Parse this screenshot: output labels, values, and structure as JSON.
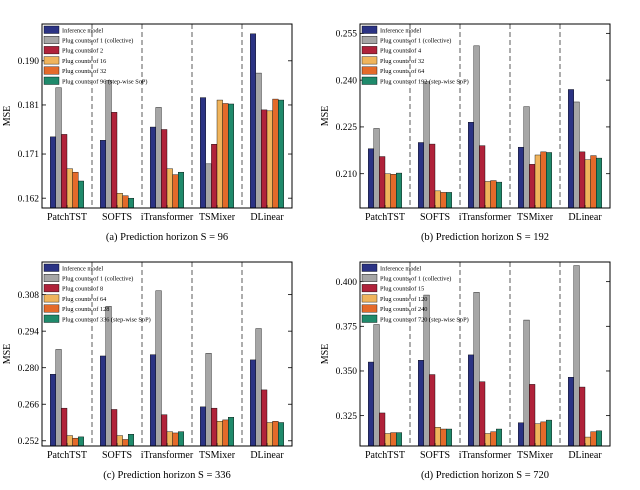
{
  "chart_data": [
    {
      "type": "bar",
      "caption": "(a) Prediction horizon S = 96",
      "ylabel": "MSE",
      "ylim": [
        0.16,
        0.1975
      ],
      "yticks": [
        "0.162",
        "0.171",
        "0.181",
        "0.190"
      ],
      "categories": [
        "PatchTST",
        "SOFTS",
        "iTransformer",
        "TSMixer",
        "DLinear"
      ],
      "series": [
        {
          "name": "Inference model",
          "values": [
            0.1745,
            0.1738,
            0.1765,
            0.1825,
            0.1955
          ]
        },
        {
          "name": "Plug counts of 1 (collective)",
          "values": [
            0.1845,
            0.186,
            0.1805,
            0.169,
            0.1875
          ]
        },
        {
          "name": "Plug counts of 2",
          "values": [
            0.175,
            0.1795,
            0.176,
            0.173,
            0.18
          ]
        },
        {
          "name": "Plug counts of 16",
          "values": [
            0.168,
            0.163,
            0.168,
            0.182,
            0.1798
          ]
        },
        {
          "name": "Plug counts of 32",
          "values": [
            0.1673,
            0.1625,
            0.1668,
            0.1813,
            0.1822
          ]
        },
        {
          "name": "Plug counts of 96 (step-wise SoP)",
          "values": [
            0.1655,
            0.162,
            0.1673,
            0.1812,
            0.182
          ]
        }
      ]
    },
    {
      "type": "bar",
      "caption": "(b) Prediction horizon S = 192",
      "ylabel": "MSE",
      "ylim": [
        0.199,
        0.258
      ],
      "yticks": [
        "0.210",
        "0.225",
        "0.240",
        "0.255"
      ],
      "categories": [
        "PatchTST",
        "SOFTS",
        "iTransformer",
        "TSMixer",
        "DLinear"
      ],
      "series": [
        {
          "name": "Inference model",
          "values": [
            0.218,
            0.22,
            0.2265,
            0.2185,
            0.237
          ]
        },
        {
          "name": "Plug counts of 1 (collective)",
          "values": [
            0.2245,
            0.2395,
            0.251,
            0.2315,
            0.233
          ]
        },
        {
          "name": "Plug counts of 4",
          "values": [
            0.2155,
            0.2195,
            0.219,
            0.213,
            0.217
          ]
        },
        {
          "name": "Plug counts of 32",
          "values": [
            0.21,
            0.2045,
            0.2075,
            0.216,
            0.2145
          ]
        },
        {
          "name": "Plug counts of 64",
          "values": [
            0.2098,
            0.204,
            0.2078,
            0.217,
            0.2158
          ]
        },
        {
          "name": "Plug counts of 192 (step-wise SoP)",
          "values": [
            0.2102,
            0.204,
            0.2073,
            0.2168,
            0.215
          ]
        }
      ]
    },
    {
      "type": "bar",
      "caption": "(c) Prediction horizon S = 336",
      "ylabel": "MSE",
      "ylim": [
        0.25,
        0.3205
      ],
      "yticks": [
        "0.252",
        "0.266",
        "0.280",
        "0.294",
        "0.308"
      ],
      "categories": [
        "PatchTST",
        "SOFTS",
        "iTransformer",
        "TSMixer",
        "DLinear"
      ],
      "series": [
        {
          "name": "Inference model",
          "values": [
            0.2775,
            0.2845,
            0.285,
            0.265,
            0.283
          ]
        },
        {
          "name": "Plug counts of 1 (collective)",
          "values": [
            0.287,
            0.3035,
            0.3095,
            0.2855,
            0.295
          ]
        },
        {
          "name": "Plug counts of 8",
          "values": [
            0.2645,
            0.264,
            0.262,
            0.2645,
            0.2715
          ]
        },
        {
          "name": "Plug counts of 64",
          "values": [
            0.254,
            0.254,
            0.2555,
            0.2595,
            0.259
          ]
        },
        {
          "name": "Plug counts of 128",
          "values": [
            0.253,
            0.2525,
            0.255,
            0.26,
            0.2595
          ]
        },
        {
          "name": "Plug counts of 336 (step-wise SoP)",
          "values": [
            0.2535,
            0.2545,
            0.2555,
            0.261,
            0.259
          ]
        }
      ]
    },
    {
      "type": "bar",
      "caption": "(d) Prediction horizon S = 720",
      "ylabel": "MSE",
      "ylim": [
        0.308,
        0.411
      ],
      "yticks": [
        "0.325",
        "0.350",
        "0.375",
        "0.400"
      ],
      "categories": [
        "PatchTST",
        "SOFTS",
        "iTransformer",
        "TSMixer",
        "DLinear"
      ],
      "series": [
        {
          "name": "Inference model",
          "values": [
            0.355,
            0.356,
            0.359,
            0.321,
            0.3465
          ]
        },
        {
          "name": "Plug counts of 1 (collective)",
          "values": [
            0.376,
            0.3925,
            0.394,
            0.3785,
            0.409
          ]
        },
        {
          "name": "Plug counts of 15",
          "values": [
            0.3265,
            0.348,
            0.344,
            0.3425,
            0.341
          ]
        },
        {
          "name": "Plug counts of 120",
          "values": [
            0.315,
            0.3185,
            0.315,
            0.3205,
            0.313
          ]
        },
        {
          "name": "Plug counts of 240",
          "values": [
            0.3155,
            0.3175,
            0.316,
            0.3215,
            0.316
          ]
        },
        {
          "name": "Plug counts of 720 (step-wise SoP)",
          "values": [
            0.3155,
            0.3175,
            0.3175,
            0.3225,
            0.3165
          ]
        }
      ]
    }
  ],
  "colors": {
    "series": [
      "#2b3384",
      "#a6a6a6",
      "#b0223a",
      "#f0b45c",
      "#e46a2a",
      "#1f8a6b"
    ],
    "separator": "#333333",
    "axis": "#000000"
  }
}
